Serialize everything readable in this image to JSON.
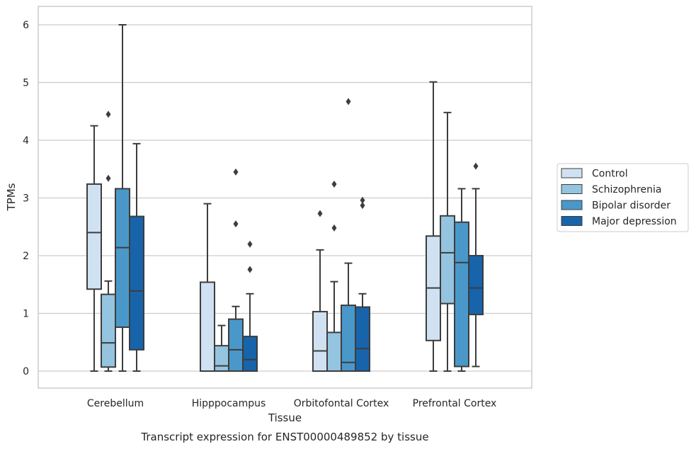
{
  "chart_data": {
    "type": "box",
    "xlabel": "Tissue",
    "ylabel": "TPMs",
    "caption": "Transcript expression for ENST00000489852 by tissue",
    "ylim": [
      -0.3,
      6.3
    ],
    "yticks": [
      0,
      1,
      2,
      3,
      4,
      5,
      6
    ],
    "grid": "horizontal",
    "legend_position": "right",
    "categories": [
      "Cerebellum",
      "Hipppocampus",
      "Orbitofontal Cortex",
      "Prefrontal Cortex"
    ],
    "series": [
      {
        "name": "Control",
        "color": "#d0e1f2",
        "boxes": [
          {
            "whisker_low": 0,
            "q1": 1.42,
            "median": 2.4,
            "q3": 3.24,
            "whisker_high": 4.25,
            "outliers": []
          },
          {
            "whisker_low": 0,
            "q1": 0,
            "median": 0,
            "q3": 1.54,
            "whisker_high": 2.9,
            "outliers": []
          },
          {
            "whisker_low": 0,
            "q1": 0,
            "median": 0.35,
            "q3": 1.03,
            "whisker_high": 2.1,
            "outliers": [
              2.73
            ]
          },
          {
            "whisker_low": 0,
            "q1": 0.53,
            "median": 1.44,
            "q3": 2.34,
            "whisker_high": 5.01,
            "outliers": []
          }
        ]
      },
      {
        "name": "Schizophrenia",
        "color": "#94c4df",
        "boxes": [
          {
            "whisker_low": 0,
            "q1": 0.07,
            "median": 0.49,
            "q3": 1.33,
            "whisker_high": 1.56,
            "outliers": [
              3.34,
              4.45
            ]
          },
          {
            "whisker_low": 0,
            "q1": 0,
            "median": 0.09,
            "q3": 0.44,
            "whisker_high": 0.79,
            "outliers": []
          },
          {
            "whisker_low": 0,
            "q1": 0,
            "median": 0,
            "q3": 0.67,
            "whisker_high": 1.55,
            "outliers": [
              2.48,
              3.24
            ]
          },
          {
            "whisker_low": 0,
            "q1": 1.17,
            "median": 2.05,
            "q3": 2.69,
            "whisker_high": 4.48,
            "outliers": []
          }
        ]
      },
      {
        "name": "Bipolar disorder",
        "color": "#4a98c9",
        "boxes": [
          {
            "whisker_low": 0,
            "q1": 0.76,
            "median": 2.14,
            "q3": 3.16,
            "whisker_high": 6.0,
            "outliers": []
          },
          {
            "whisker_low": 0,
            "q1": 0,
            "median": 0.37,
            "q3": 0.9,
            "whisker_high": 1.12,
            "outliers": [
              2.55,
              3.45
            ]
          },
          {
            "whisker_low": 0,
            "q1": 0,
            "median": 0.15,
            "q3": 1.14,
            "whisker_high": 1.87,
            "outliers": [
              4.67
            ]
          },
          {
            "whisker_low": 0,
            "q1": 0.08,
            "median": 1.88,
            "q3": 2.58,
            "whisker_high": 3.16,
            "outliers": []
          }
        ]
      },
      {
        "name": "Major depression",
        "color": "#1764ab",
        "boxes": [
          {
            "whisker_low": 0,
            "q1": 0.37,
            "median": 1.39,
            "q3": 2.68,
            "whisker_high": 3.94,
            "outliers": []
          },
          {
            "whisker_low": 0,
            "q1": 0,
            "median": 0.2,
            "q3": 0.6,
            "whisker_high": 1.34,
            "outliers": [
              1.76,
              2.2
            ]
          },
          {
            "whisker_low": 0,
            "q1": 0,
            "median": 0.39,
            "q3": 1.11,
            "whisker_high": 1.34,
            "outliers": [
              2.87,
              2.96
            ]
          },
          {
            "whisker_low": 0.08,
            "q1": 0.98,
            "median": 1.44,
            "q3": 2.0,
            "whisker_high": 3.16,
            "outliers": [
              3.55
            ]
          }
        ]
      }
    ]
  }
}
